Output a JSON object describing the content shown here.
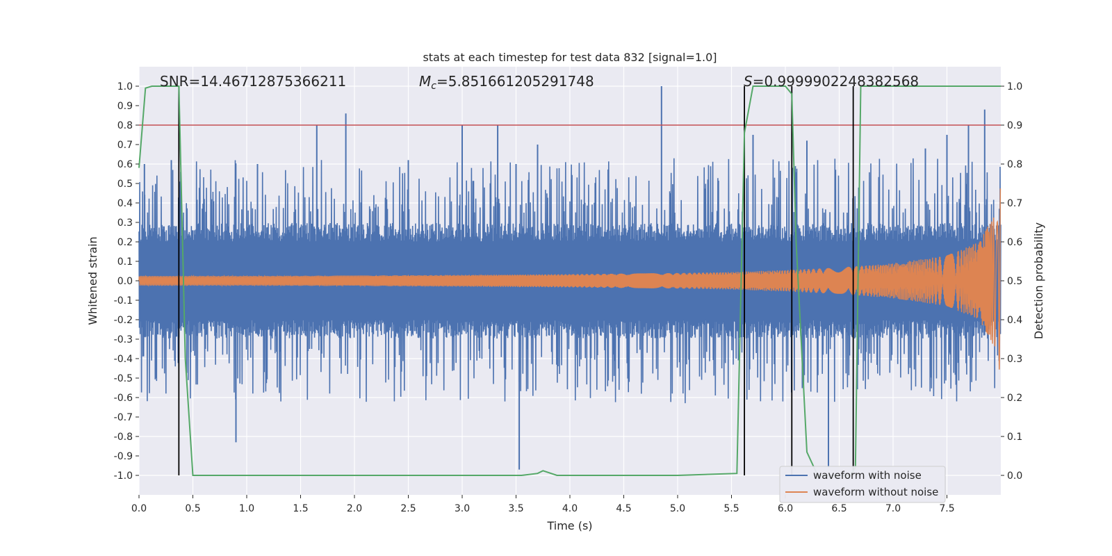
{
  "chart_data": {
    "type": "line",
    "title": "stats at each timestep for test data 832 [signal=1.0]",
    "xlabel": "Time (s)",
    "ylabel": "Whitened strain",
    "y2label": "Detection probability",
    "xlim": [
      0.0,
      8.0
    ],
    "ylim": [
      -1.1,
      1.1
    ],
    "y2lim": [
      -0.05,
      1.05
    ],
    "x_ticks": [
      0.0,
      0.5,
      1.0,
      1.5,
      2.0,
      2.5,
      3.0,
      3.5,
      4.0,
      4.5,
      5.0,
      5.5,
      6.0,
      6.5,
      7.0,
      7.5
    ],
    "x_tick_labels": [
      "0.0",
      "0.5",
      "1.0",
      "1.5",
      "2.0",
      "2.5",
      "3.0",
      "3.5",
      "4.0",
      "4.5",
      "5.0",
      "5.5",
      "6.0",
      "6.5",
      "7.0",
      "7.5"
    ],
    "y_ticks": [
      1.0,
      0.9,
      0.8,
      0.7,
      0.6,
      0.5,
      0.4,
      0.3,
      0.2,
      0.1,
      0.0,
      -0.1,
      -0.2,
      -0.3,
      -0.4,
      -0.5,
      -0.6,
      -0.7,
      -0.8,
      -0.9,
      -1.0
    ],
    "y_tick_labels": [
      "1.0",
      "0.9",
      "0.8",
      "0.7",
      "0.6",
      "0.5",
      "0.4",
      "0.3",
      "0.2",
      "0.1",
      "0.0",
      "-0.1",
      "-0.2",
      "-0.3",
      "-0.4",
      "-0.5",
      "-0.6",
      "-0.7",
      "-0.8",
      "-0.9",
      "-1.0"
    ],
    "y2_ticks": [
      1.0,
      0.9,
      0.8,
      0.7,
      0.6,
      0.5,
      0.4,
      0.3,
      0.2,
      0.1,
      0.0
    ],
    "y2_tick_labels": [
      "1.0",
      "0.9",
      "0.8",
      "0.7",
      "0.6",
      "0.5",
      "0.4",
      "0.3",
      "0.2",
      "0.1",
      "0.0"
    ],
    "grid": true,
    "legend_placement": "lower-right",
    "annotations": {
      "snr": "SNR=14.46712875366211",
      "mc_symbol": "M",
      "mc_sub": "c",
      "mc_value": "=5.851661205291748",
      "s_symbol": "S",
      "s_value": "=0.9999902248382568"
    },
    "threshold": {
      "axis": "y2",
      "value": 0.9,
      "color": "#c44e52"
    },
    "vertical_lines": [
      0.37,
      5.62,
      6.06,
      6.63
    ],
    "vline_range": [
      -1.0,
      1.0
    ],
    "series": [
      {
        "name": "waveform with noise",
        "color": "#4c72b0",
        "axis": "y",
        "description_peaks": {
          "x": [
            0.05,
            0.3,
            0.9,
            1.1,
            1.65,
            1.92,
            2.5,
            3.0,
            3.33,
            3.5,
            3.53,
            3.7,
            4.85,
            5.7,
            6.2,
            6.4,
            7.3,
            7.5,
            7.7,
            7.85
          ],
          "y": [
            0.6,
            0.62,
            -0.83,
            0.6,
            0.8,
            0.86,
            0.62,
            0.8,
            0.8,
            0.6,
            -0.97,
            0.7,
            1.0,
            0.75,
            0.72,
            -0.96,
            0.68,
            0.75,
            0.8,
            0.88
          ]
        },
        "noise_band": 0.27
      },
      {
        "name": "waveform without noise",
        "color": "#dd8452",
        "axis": "y",
        "envelope": {
          "x": [
            0.0,
            1.0,
            2.0,
            3.0,
            4.0,
            5.0,
            5.5,
            6.0,
            6.5,
            7.0,
            7.5,
            7.8,
            7.95,
            8.0
          ],
          "y": [
            0.025,
            0.025,
            0.027,
            0.03,
            0.034,
            0.04,
            0.045,
            0.055,
            0.068,
            0.09,
            0.13,
            0.2,
            0.35,
            0.5
          ]
        }
      },
      {
        "name": "detection probability",
        "color": "#55a868",
        "axis": "y2",
        "x": [
          0.0,
          0.06,
          0.12,
          0.2,
          0.3,
          0.37,
          0.43,
          0.5,
          1.0,
          2.0,
          3.0,
          3.55,
          3.7,
          3.75,
          3.88,
          4.5,
          5.0,
          5.55,
          5.62,
          5.7,
          5.8,
          6.0,
          6.06,
          6.1,
          6.2,
          6.3,
          6.45,
          6.6,
          6.65,
          6.7,
          6.8,
          7.2,
          7.5,
          8.0
        ],
        "y": [
          0.79,
          0.995,
          1.0,
          1.0,
          1.0,
          1.0,
          0.3,
          0.0,
          0.0,
          0.0,
          0.0,
          0.0,
          0.005,
          0.012,
          0.0,
          0.0,
          0.0,
          0.005,
          0.88,
          1.0,
          1.0,
          1.0,
          0.98,
          0.6,
          0.06,
          0.0,
          0.0,
          0.0,
          0.02,
          1.0,
          1.0,
          1.0,
          1.0,
          1.0
        ]
      }
    ]
  }
}
